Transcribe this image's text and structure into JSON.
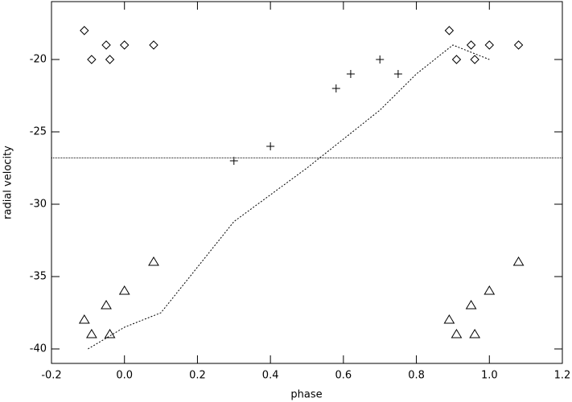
{
  "chart_data": {
    "type": "scatter",
    "xlabel": "phase",
    "ylabel": "radial velocity",
    "xlim": [
      -0.2,
      1.2
    ],
    "ylim": [
      -41,
      -16
    ],
    "xticks": [
      -0.2,
      {
        "value": 0,
        "label": "0.0"
      },
      0.2,
      0.4,
      0.6,
      0.8,
      {
        "value": 1,
        "label": "1.0"
      },
      1.2
    ],
    "yticks": [
      -40,
      -35,
      -30,
      -25,
      -20
    ],
    "hline": -26.8,
    "series": [
      {
        "marker": "diamond",
        "color": "#000",
        "x": [
          -0.11,
          -0.09,
          -0.05,
          -0.04,
          0.0,
          0.08,
          0.89,
          0.91,
          0.95,
          0.96,
          1.0,
          1.08
        ],
        "values": [
          -18,
          -20,
          -19,
          -20,
          -19,
          -19,
          -18,
          -20,
          -19,
          -20,
          -19,
          -19
        ]
      },
      {
        "marker": "plus",
        "color": "#000",
        "x": [
          0.3,
          0.4,
          0.58,
          0.62,
          0.7,
          0.75
        ],
        "values": [
          -27,
          -26,
          -22,
          -21,
          -20,
          -21
        ]
      },
      {
        "marker": "triangle",
        "color": "#000",
        "x": [
          -0.11,
          -0.09,
          -0.05,
          -0.04,
          0.0,
          0.08,
          0.89,
          0.91,
          0.95,
          0.96,
          1.0,
          1.08
        ],
        "values": [
          -38,
          -39,
          -37,
          -39,
          -36,
          -34,
          -38,
          -39,
          -37,
          -39,
          -36,
          -34
        ]
      },
      {
        "marker": "dotted-line",
        "color": "#000",
        "x": [
          -0.1,
          0.0,
          0.1,
          0.3,
          0.5,
          0.7,
          0.8,
          0.9,
          1.0
        ],
        "values": [
          -40,
          -38.5,
          -37.5,
          -31.2,
          -27.5,
          -23.5,
          -21,
          -19,
          -20
        ]
      }
    ]
  }
}
